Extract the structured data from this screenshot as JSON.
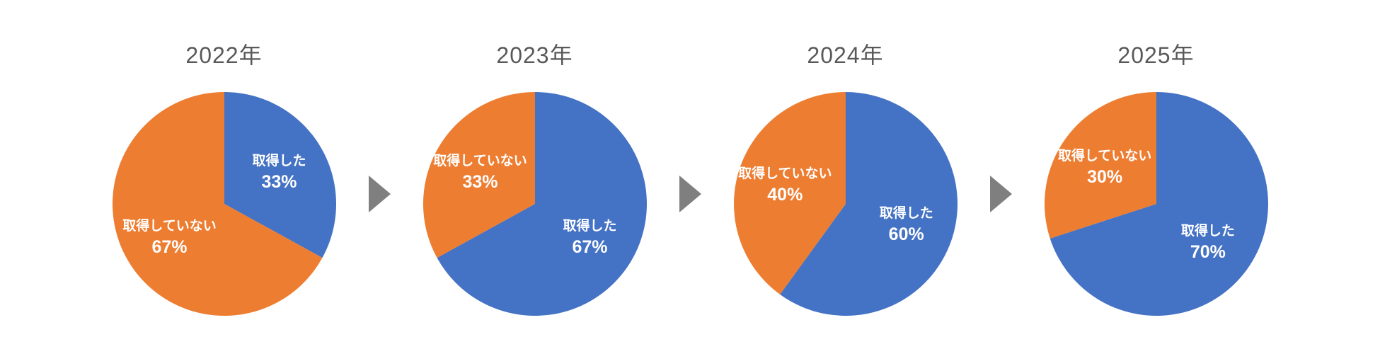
{
  "page": {
    "background": "#FFFFFF"
  },
  "colors": {
    "acquired_blue": "#4472C4",
    "not_acquired_orange": "#ED7D31",
    "arrow_gray": "#7F7F7F",
    "title_gray": "#595959",
    "label_white": "#FFFFFF"
  },
  "arrow": {
    "glyph": "right-pointing-triangle",
    "count": 3
  },
  "chart_data": [
    {
      "type": "pie",
      "title": "2022年",
      "start_angle_deg": 0,
      "direction": "clockwise",
      "legend": "none",
      "labels": "inside-category-and-percent",
      "slices": [
        {
          "name": "取得した",
          "value": 33,
          "pct_label": "33%",
          "color": "#4472C4"
        },
        {
          "name": "取得していない",
          "value": 67,
          "pct_label": "67%",
          "color": "#ED7D31"
        }
      ]
    },
    {
      "type": "pie",
      "title": "2023年",
      "start_angle_deg": 0,
      "direction": "clockwise",
      "legend": "none",
      "labels": "inside-category-and-percent",
      "slices": [
        {
          "name": "取得した",
          "value": 67,
          "pct_label": "67%",
          "color": "#4472C4"
        },
        {
          "name": "取得していない",
          "value": 33,
          "pct_label": "33%",
          "color": "#ED7D31"
        }
      ]
    },
    {
      "type": "pie",
      "title": "2024年",
      "start_angle_deg": 0,
      "direction": "clockwise",
      "legend": "none",
      "labels": "inside-category-and-percent",
      "slices": [
        {
          "name": "取得した",
          "value": 60,
          "pct_label": "60%",
          "color": "#4472C4"
        },
        {
          "name": "取得していない",
          "value": 40,
          "pct_label": "40%",
          "color": "#ED7D31"
        }
      ]
    },
    {
      "type": "pie",
      "title": "2025年",
      "start_angle_deg": 0,
      "direction": "clockwise",
      "legend": "none",
      "labels": "inside-category-and-percent",
      "slices": [
        {
          "name": "取得した",
          "value": 70,
          "pct_label": "70%",
          "color": "#4472C4"
        },
        {
          "name": "取得していない",
          "value": 30,
          "pct_label": "30%",
          "color": "#ED7D31"
        }
      ]
    }
  ]
}
